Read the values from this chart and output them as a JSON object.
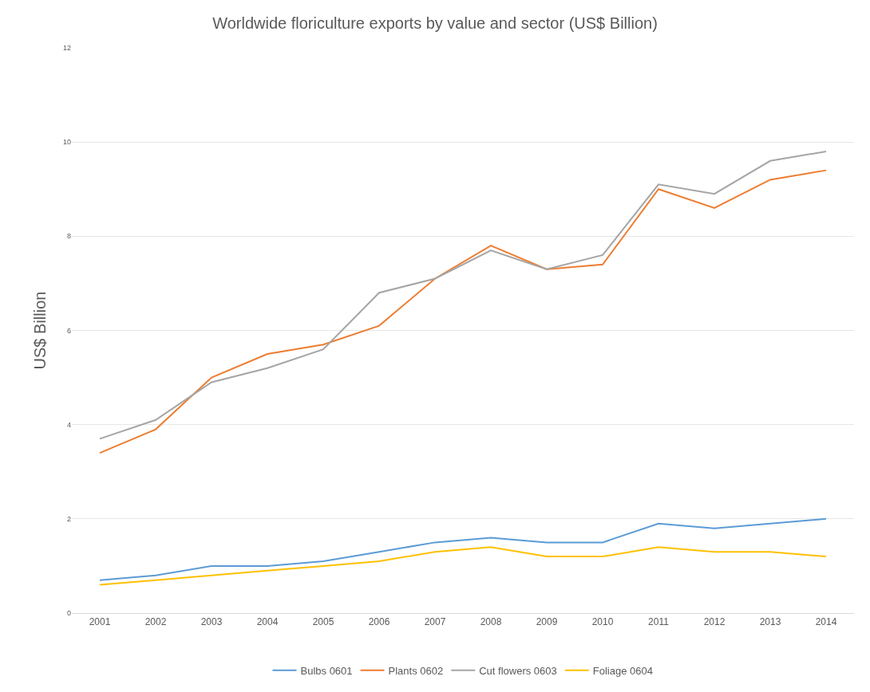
{
  "chart_data": {
    "type": "line",
    "title": "Worldwide floriculture exports by value and sector (US$ Billion)",
    "ylabel": "US$ Billion",
    "categories": [
      "2001",
      "2002",
      "2003",
      "2004",
      "2005",
      "2006",
      "2007",
      "2008",
      "2009",
      "2010",
      "2011",
      "2012",
      "2013",
      "2014"
    ],
    "series": [
      {
        "name": "Bulbs 0601",
        "color": "#5b9bd5",
        "values": [
          0.7,
          0.8,
          1.0,
          1.0,
          1.1,
          1.3,
          1.5,
          1.6,
          1.5,
          1.5,
          1.9,
          1.8,
          1.9,
          2.0
        ]
      },
      {
        "name": "Plants 0602",
        "color": "#ed7d31",
        "values": [
          3.4,
          3.9,
          5.0,
          5.5,
          5.7,
          6.1,
          7.1,
          7.8,
          7.3,
          7.4,
          9.0,
          8.6,
          9.2,
          9.4
        ]
      },
      {
        "name": "Cut flowers 0603",
        "color": "#a5a5a5",
        "values": [
          3.7,
          4.1,
          4.9,
          5.2,
          5.6,
          6.8,
          7.1,
          7.7,
          7.3,
          7.6,
          9.1,
          8.9,
          9.6,
          9.8
        ]
      },
      {
        "name": "Foliage 0604",
        "color": "#ffc000",
        "values": [
          0.6,
          0.7,
          0.8,
          0.9,
          1.0,
          1.1,
          1.3,
          1.4,
          1.2,
          1.2,
          1.4,
          1.3,
          1.3,
          1.2
        ]
      }
    ],
    "ylim": [
      0,
      12
    ],
    "yticks": [
      0,
      2,
      4,
      6,
      8,
      10,
      12
    ],
    "grid": "y",
    "legend": "bottom",
    "marker": "none",
    "line_style": "solid"
  }
}
